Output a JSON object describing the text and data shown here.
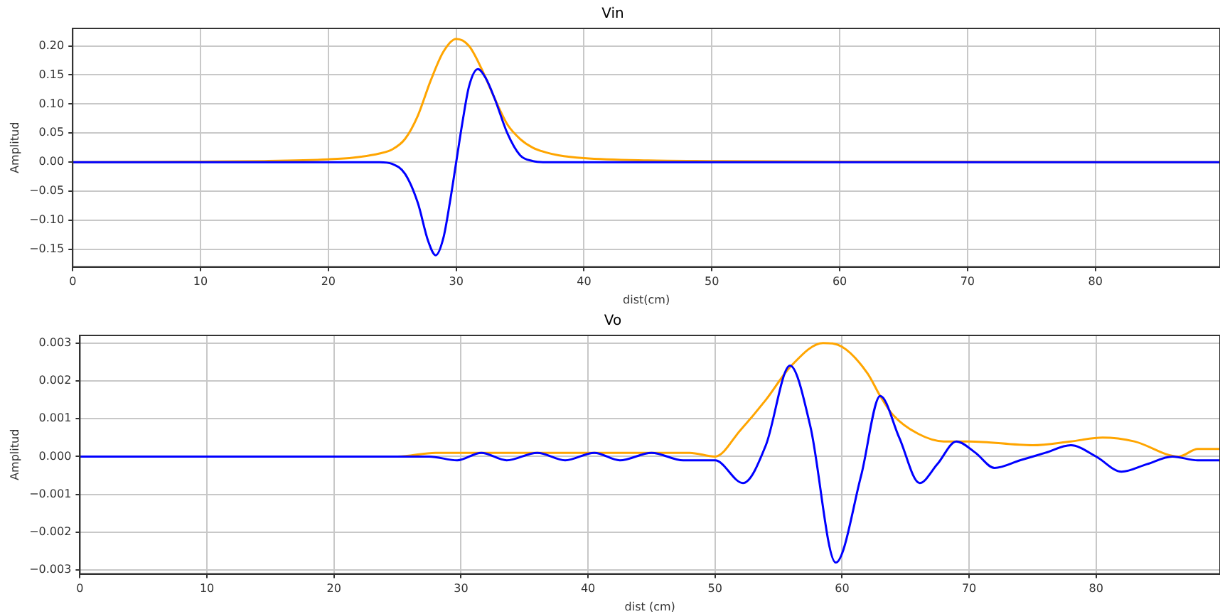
{
  "chart_data": [
    {
      "type": "line",
      "title": "Vin",
      "xlabel": "dist(cm)",
      "ylabel": "Amplitud",
      "xlim": [
        0,
        89.75
      ],
      "ylim": [
        -0.18,
        0.23
      ],
      "xticks": [
        0,
        10,
        20,
        30,
        40,
        50,
        60,
        70,
        80
      ],
      "yticks": [
        {
          "value": -0.15,
          "label": "−0.15"
        },
        {
          "value": -0.1,
          "label": "−0.10"
        },
        {
          "value": -0.05,
          "label": "−0.05"
        },
        {
          "value": 0,
          "label": "0.00"
        },
        {
          "value": 0.05,
          "label": "0.05"
        },
        {
          "value": 0.1,
          "label": "0.10"
        },
        {
          "value": 0.15,
          "label": "0.15"
        },
        {
          "value": 0.2,
          "label": "0.20"
        }
      ],
      "grid": true,
      "legend": false,
      "marker": "none",
      "line_style": "solid",
      "series": [
        {
          "color": "#0000ff",
          "x": [
            0,
            20,
            24,
            25,
            26,
            27,
            27.8,
            28.4,
            29,
            29.5,
            30,
            30.5,
            31,
            31.7,
            32.3,
            33,
            34,
            35,
            36,
            37,
            89.75
          ],
          "values": [
            0,
            0,
            0,
            -0.003,
            -0.02,
            -0.07,
            -0.135,
            -0.16,
            -0.13,
            -0.07,
            0,
            0.07,
            0.13,
            0.16,
            0.145,
            0.11,
            0.05,
            0.012,
            0.002,
            0,
            0
          ]
        },
        {
          "color": "#ffa500",
          "x": [
            0,
            10,
            15,
            20,
            22,
            24,
            25,
            26,
            27,
            28,
            29,
            30,
            31,
            32,
            33,
            34,
            35,
            36,
            37,
            38,
            40,
            45,
            50,
            60,
            89.75
          ],
          "values": [
            0,
            0.001,
            0.002,
            0.005,
            0.008,
            0.015,
            0.022,
            0.04,
            0.08,
            0.14,
            0.19,
            0.212,
            0.2,
            0.16,
            0.11,
            0.065,
            0.04,
            0.025,
            0.017,
            0.012,
            0.007,
            0.003,
            0.002,
            0.001,
            0
          ]
        }
      ]
    },
    {
      "type": "line",
      "title": "Vo",
      "xlabel": "dist (cm)",
      "ylabel": "Amplitud",
      "xlim": [
        0,
        89.75
      ],
      "ylim": [
        -0.0031,
        0.0032
      ],
      "xticks": [
        0,
        10,
        20,
        30,
        40,
        50,
        60,
        70,
        80
      ],
      "yticks": [
        {
          "value": -0.003,
          "label": "−0.003"
        },
        {
          "value": -0.002,
          "label": "−0.002"
        },
        {
          "value": -0.001,
          "label": "−0.001"
        },
        {
          "value": 0,
          "label": "0.000"
        },
        {
          "value": 0.001,
          "label": "0.001"
        },
        {
          "value": 0.002,
          "label": "0.002"
        },
        {
          "value": 0.003,
          "label": "0.003"
        }
      ],
      "grid": true,
      "legend": false,
      "marker": "none",
      "line_style": "solid",
      "series": [
        {
          "color": "#0000ff",
          "x": [
            0,
            20,
            25,
            27.5,
            29.7,
            31.6,
            33.6,
            36,
            38.2,
            40.5,
            42.5,
            45,
            47.5,
            50,
            52.2,
            54,
            55.9,
            57.5,
            59.5,
            61.5,
            63,
            64.5,
            66.1,
            67.5,
            69,
            70.5,
            72,
            74,
            76,
            78,
            80,
            82,
            84,
            86,
            88,
            89.75
          ],
          "values": [
            0,
            0,
            0,
            0,
            -0.0001,
            0.0001,
            -0.0001,
            0.0001,
            -0.0001,
            0.0001,
            -0.0001,
            0.0001,
            -0.0001,
            -0.0001,
            -0.0007,
            0.0003,
            0.0024,
            0.0008,
            -0.0028,
            -0.0005,
            0.0016,
            0.0005,
            -0.0007,
            -0.0002,
            0.0004,
            0.0001,
            -0.0003,
            -0.0001,
            0.0001,
            0.0003,
            0,
            -0.0004,
            -0.0002,
            0,
            -0.0001,
            -0.0001
          ]
        },
        {
          "color": "#ffa500",
          "x": [
            0,
            20,
            25,
            28,
            40,
            48,
            50,
            52,
            54,
            56,
            58.5,
            60,
            62,
            63,
            64,
            66,
            68,
            70,
            75,
            78,
            80.5,
            83,
            86.5,
            88,
            89.75
          ],
          "values": [
            0,
            0,
            0,
            0.0001,
            0.0001,
            0.0001,
            0,
            0.0007,
            0.0015,
            0.0024,
            0.003,
            0.0029,
            0.0022,
            0.0016,
            0.0011,
            0.0006,
            0.0004,
            0.0004,
            0.0003,
            0.0004,
            0.0005,
            0.0004,
            0,
            0.0002,
            0.0002
          ]
        }
      ]
    }
  ]
}
